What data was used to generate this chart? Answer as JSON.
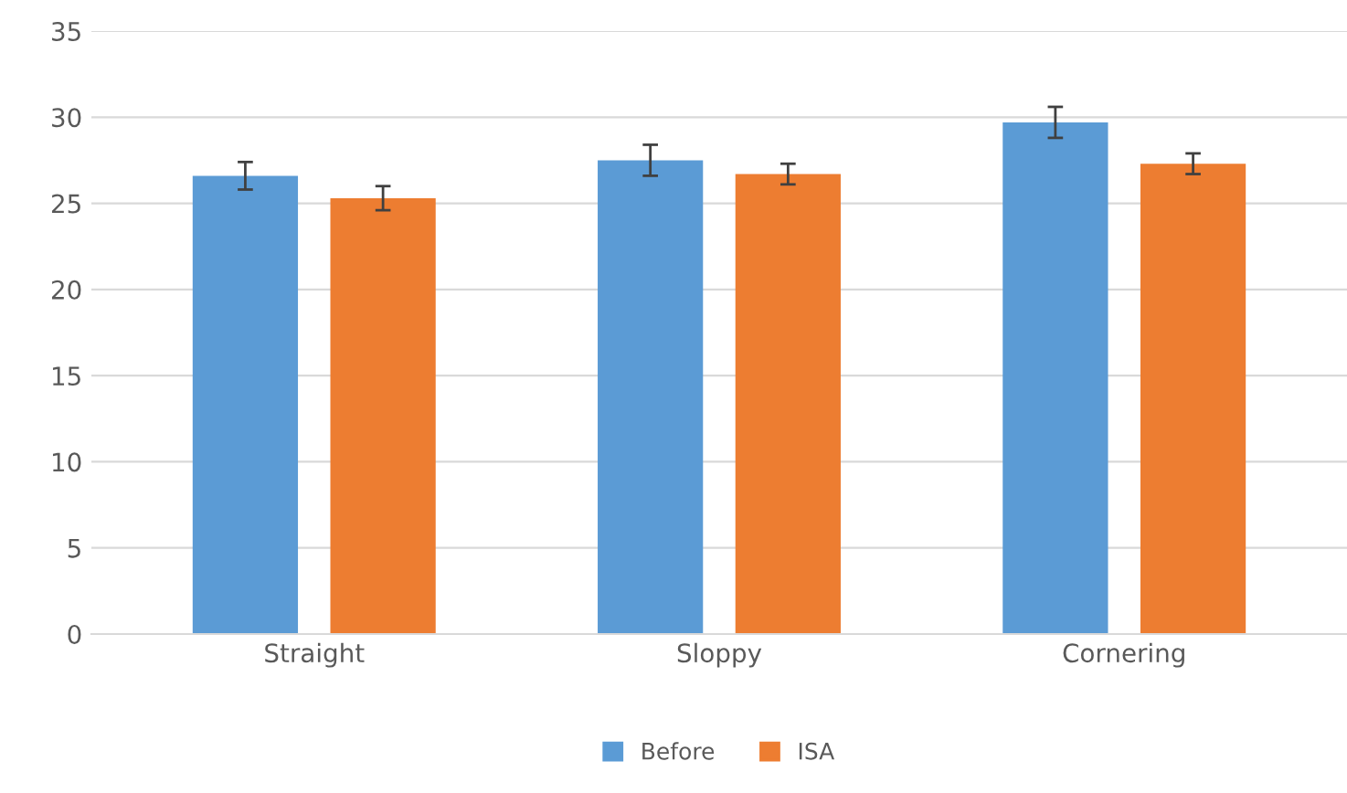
{
  "chart_data": {
    "type": "bar",
    "categories": [
      "Straight",
      "Sloppy",
      "Cornering"
    ],
    "series": [
      {
        "name": "Before",
        "color": "#5b9bd5",
        "values": [
          26.6,
          27.5,
          29.7
        ],
        "errors": [
          0.8,
          0.9,
          0.9
        ]
      },
      {
        "name": "ISA",
        "color": "#ed7d31",
        "values": [
          25.3,
          26.7,
          27.3
        ],
        "errors": [
          0.7,
          0.6,
          0.6
        ]
      }
    ],
    "ylim": [
      0,
      35
    ],
    "yticks": [
      0,
      5,
      10,
      15,
      20,
      25,
      30,
      35
    ],
    "grid": "y",
    "legend": "bottom"
  }
}
